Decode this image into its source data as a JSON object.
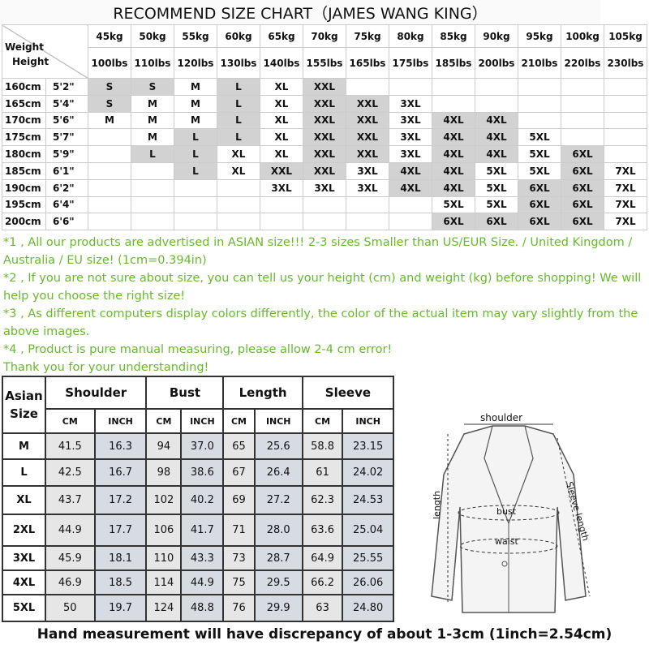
{
  "title": "RECOMMEND SIZE CHART（JAMES WANG KING）",
  "size_chart": {
    "corner_top": "Weight",
    "corner_bottom": "Height",
    "weights_kg": [
      "45kg",
      "50kg",
      "55kg",
      "60kg",
      "65kg",
      "70kg",
      "75kg",
      "80kg",
      "85kg",
      "90kg",
      "95kg",
      "100kg",
      "105kg"
    ],
    "weights_lbs": [
      "100lbs",
      "110lbs",
      "120lbs",
      "130lbs",
      "140lbs",
      "155lbs",
      "165lbs",
      "175lbs",
      "185lbs",
      "200lbs",
      "210lbs",
      "220lbs",
      "230lbs"
    ],
    "rows": [
      {
        "cm": "160cm",
        "ft": "5'2\"",
        "sizes": [
          "S",
          "S",
          "M",
          "L",
          "XL",
          "XXL",
          "",
          "",
          "",
          "",
          "",
          "",
          ""
        ],
        "shaded": [
          1,
          1,
          0,
          1,
          0,
          1,
          0,
          0,
          0,
          0,
          0,
          0,
          0
        ]
      },
      {
        "cm": "165cm",
        "ft": "5'4\"",
        "sizes": [
          "S",
          "M",
          "M",
          "L",
          "XL",
          "XXL",
          "XXL",
          "3XL",
          "",
          "",
          "",
          "",
          ""
        ],
        "shaded": [
          1,
          0,
          0,
          1,
          0,
          1,
          1,
          0,
          0,
          0,
          0,
          0,
          0
        ]
      },
      {
        "cm": "170cm",
        "ft": "5'6\"",
        "sizes": [
          "M",
          "M",
          "M",
          "L",
          "XL",
          "XXL",
          "XXL",
          "3XL",
          "4XL",
          "4XL",
          "",
          "",
          ""
        ],
        "shaded": [
          0,
          0,
          0,
          1,
          0,
          1,
          1,
          0,
          1,
          1,
          0,
          0,
          0
        ]
      },
      {
        "cm": "175cm",
        "ft": "5'7\"",
        "sizes": [
          "",
          "M",
          "L",
          "L",
          "XL",
          "XXL",
          "XXL",
          "3XL",
          "4XL",
          "4XL",
          "5XL",
          "",
          ""
        ],
        "shaded": [
          0,
          0,
          1,
          1,
          0,
          1,
          1,
          0,
          1,
          1,
          0,
          0,
          0
        ]
      },
      {
        "cm": "180cm",
        "ft": "5'9\"",
        "sizes": [
          "",
          "L",
          "L",
          "XL",
          "XL",
          "XXL",
          "XXL",
          "3XL",
          "4XL",
          "4XL",
          "5XL",
          "6XL",
          ""
        ],
        "shaded": [
          0,
          1,
          1,
          0,
          0,
          1,
          1,
          0,
          1,
          1,
          0,
          1,
          0
        ]
      },
      {
        "cm": "185cm",
        "ft": "6'1\"",
        "sizes": [
          "",
          "",
          "L",
          "XL",
          "XXL",
          "XXL",
          "3XL",
          "4XL",
          "4XL",
          "5XL",
          "5XL",
          "6XL",
          "7XL"
        ],
        "shaded": [
          0,
          0,
          1,
          0,
          1,
          1,
          0,
          1,
          1,
          0,
          0,
          1,
          0
        ]
      },
      {
        "cm": "190cm",
        "ft": "6'2\"",
        "sizes": [
          "",
          "",
          "",
          "",
          "3XL",
          "3XL",
          "3XL",
          "4XL",
          "4XL",
          "5XL",
          "6XL",
          "6XL",
          "7XL"
        ],
        "shaded": [
          0,
          0,
          0,
          0,
          0,
          0,
          0,
          1,
          1,
          0,
          1,
          1,
          0
        ]
      },
      {
        "cm": "195cm",
        "ft": "6'4\"",
        "sizes": [
          "",
          "",
          "",
          "",
          "",
          "",
          "",
          "",
          "5XL",
          "5XL",
          "6XL",
          "6XL",
          "7XL"
        ],
        "shaded": [
          0,
          0,
          0,
          0,
          0,
          0,
          0,
          0,
          0,
          0,
          1,
          1,
          0
        ]
      },
      {
        "cm": "200cm",
        "ft": "6'6\"",
        "sizes": [
          "",
          "",
          "",
          "",
          "",
          "",
          "",
          "",
          "6XL",
          "6XL",
          "6XL",
          "6XL",
          "7XL"
        ],
        "shaded": [
          0,
          0,
          0,
          0,
          0,
          0,
          0,
          0,
          1,
          1,
          1,
          1,
          0
        ]
      }
    ]
  },
  "notes": [
    "*1 , All our products are advertised in ASIAN size!!! 2-3 sizes Smaller than US/EUR Size. / United Kingdom / Australia / EU size! (1cm=0.394in)",
    "*2 , If you are not sure about size, you can tell us your height (cm) and weight (kg) before shopping! We will help you choose the right size!",
    "*3 , As different computers display colors differently, the color of the actual item may vary slightly from the above images.",
    "*4 , Product is pure manual measuring, please allow 2-4 cm error!",
    "Thank you for your understanding!"
  ],
  "measure_table": {
    "size_header": "Asian Size",
    "groups": [
      "Shoulder",
      "Bust",
      "Length",
      "Sleeve"
    ],
    "units": [
      "CM",
      "INCH"
    ],
    "rows": [
      {
        "size": "M",
        "values": [
          "41.5",
          "16.3",
          "94",
          "37.0",
          "65",
          "25.6",
          "58.8",
          "23.15"
        ]
      },
      {
        "size": "L",
        "values": [
          "42.5",
          "16.7",
          "98",
          "38.6",
          "67",
          "26.4",
          "61",
          "24.02"
        ]
      },
      {
        "size": "XL",
        "values": [
          "43.7",
          "17.2",
          "102",
          "40.2",
          "69",
          "27.2",
          "62.3",
          "24.53"
        ]
      },
      {
        "size": "2XL",
        "values": [
          "44.9",
          "17.7",
          "106",
          "41.7",
          "71",
          "28.0",
          "63.6",
          "25.04"
        ]
      },
      {
        "size": "3XL",
        "values": [
          "45.9",
          "18.1",
          "110",
          "43.3",
          "73",
          "28.7",
          "64.9",
          "25.55"
        ]
      },
      {
        "size": "4XL",
        "values": [
          "46.9",
          "18.5",
          "114",
          "44.9",
          "75",
          "29.5",
          "66.2",
          "26.06"
        ]
      },
      {
        "size": "5XL",
        "values": [
          "50",
          "19.7",
          "124",
          "48.8",
          "76",
          "29.9",
          "63",
          "24.80"
        ]
      }
    ]
  },
  "diagram": {
    "shoulder": "shoulder",
    "bust": "bust",
    "waist": "waist",
    "length": "length",
    "sleeve": "Sleeve length"
  },
  "footer": "Hand measurement will have discrepancy of about 1-3cm (1inch=2.54cm)",
  "colors": {
    "notes_green": "#66bb2a",
    "shaded_cell": "#d2d2d2",
    "cm_cell": "#e6e6e6",
    "inch_cell": "#d7dbe2"
  }
}
